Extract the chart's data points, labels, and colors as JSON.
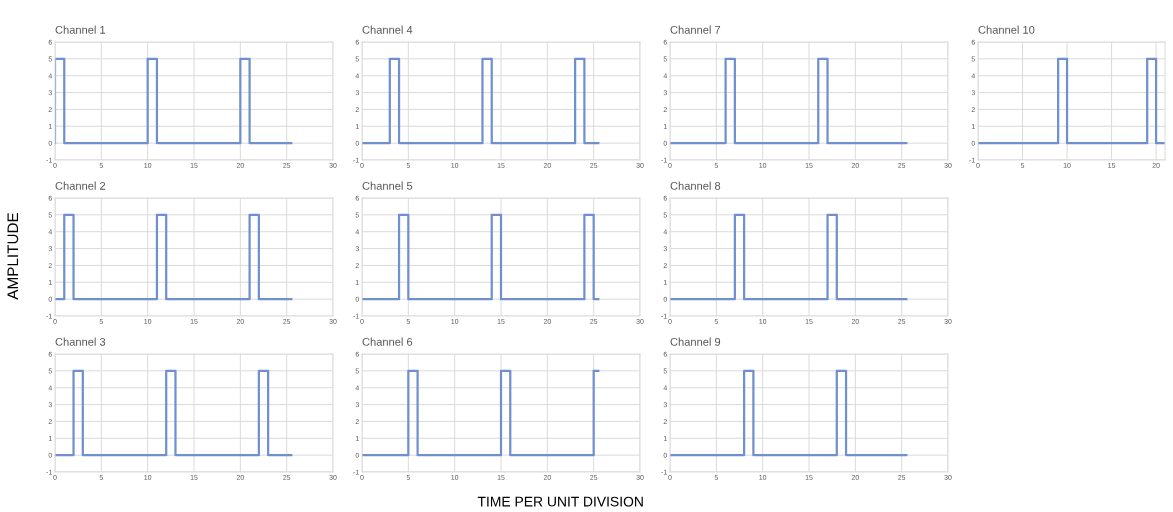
{
  "chart_data": [
    {
      "type": "line",
      "title": "Channel 1",
      "x": [
        0,
        0,
        1,
        1,
        10,
        10,
        11,
        11,
        20,
        20,
        21,
        21,
        25.5
      ],
      "values": [
        0,
        5,
        5,
        0,
        0,
        5,
        5,
        0,
        0,
        5,
        5,
        0,
        0
      ],
      "color": "#6f8fcf",
      "xlim": [
        0,
        30
      ],
      "xticks": [
        0,
        5,
        10,
        15,
        20,
        25,
        30
      ],
      "ylim": [
        -1,
        6
      ],
      "yticks": [
        -1,
        0,
        1,
        2,
        3,
        4,
        5,
        6
      ],
      "grid": true
    },
    {
      "type": "line",
      "title": "Channel 4",
      "x": [
        0,
        3,
        3,
        4,
        4,
        13,
        13,
        14,
        14,
        23,
        23,
        24,
        24,
        25.5
      ],
      "values": [
        0,
        0,
        5,
        5,
        0,
        0,
        5,
        5,
        0,
        0,
        5,
        5,
        0,
        0
      ],
      "color": "#6f8fcf",
      "xlim": [
        0,
        30
      ],
      "xticks": [
        0,
        5,
        10,
        15,
        20,
        25,
        30
      ],
      "ylim": [
        -1,
        6
      ],
      "yticks": [
        -1,
        0,
        1,
        2,
        3,
        4,
        5,
        6
      ],
      "grid": true
    },
    {
      "type": "line",
      "title": "Channel 7",
      "x": [
        0,
        6,
        6,
        7,
        7,
        16,
        16,
        17,
        17,
        25.5
      ],
      "values": [
        0,
        0,
        5,
        5,
        0,
        0,
        5,
        5,
        0,
        0
      ],
      "color": "#6f8fcf",
      "xlim": [
        0,
        30
      ],
      "xticks": [
        0,
        5,
        10,
        15,
        20,
        25,
        30
      ],
      "ylim": [
        -1,
        6
      ],
      "yticks": [
        -1,
        0,
        1,
        2,
        3,
        4,
        5,
        6
      ],
      "grid": true
    },
    {
      "type": "line",
      "title": "Channel 10",
      "x": [
        0,
        9,
        9,
        10,
        10,
        19,
        19,
        20,
        20,
        21
      ],
      "values": [
        0,
        0,
        5,
        5,
        0,
        0,
        5,
        5,
        0,
        0
      ],
      "color": "#6f8fcf",
      "xlim": [
        0,
        21
      ],
      "xticks": [
        0,
        5,
        10,
        15,
        20
      ],
      "ylim": [
        -1,
        6
      ],
      "yticks": [
        -1,
        0,
        1,
        2,
        3,
        4,
        5,
        6
      ],
      "grid": true
    },
    {
      "type": "line",
      "title": "Channel 2",
      "ylabel": "AMPLITUDE",
      "x": [
        0,
        1,
        1,
        2,
        2,
        11,
        11,
        12,
        12,
        21,
        21,
        22,
        22,
        25.5
      ],
      "values": [
        0,
        0,
        5,
        5,
        0,
        0,
        5,
        5,
        0,
        0,
        5,
        5,
        0,
        0
      ],
      "color": "#6f8fcf",
      "xlim": [
        0,
        30
      ],
      "xticks": [
        0,
        5,
        10,
        15,
        20,
        25,
        30
      ],
      "ylim": [
        -1,
        6
      ],
      "yticks": [
        -1,
        0,
        1,
        2,
        3,
        4,
        5,
        6
      ],
      "grid": true
    },
    {
      "type": "line",
      "title": "Channel 5",
      "x": [
        0,
        4,
        4,
        5,
        5,
        14,
        14,
        15,
        15,
        24,
        24,
        25,
        25,
        25.5
      ],
      "values": [
        0,
        0,
        5,
        5,
        0,
        0,
        5,
        5,
        0,
        0,
        5,
        5,
        0,
        0
      ],
      "color": "#6f8fcf",
      "xlim": [
        0,
        30
      ],
      "xticks": [
        0,
        5,
        10,
        15,
        20,
        25,
        30
      ],
      "ylim": [
        -1,
        6
      ],
      "yticks": [
        -1,
        0,
        1,
        2,
        3,
        4,
        5,
        6
      ],
      "grid": true
    },
    {
      "type": "line",
      "title": "Channel 8",
      "x": [
        0,
        7,
        7,
        8,
        8,
        17,
        17,
        18,
        18,
        25.5
      ],
      "values": [
        0,
        0,
        5,
        5,
        0,
        0,
        5,
        5,
        0,
        0
      ],
      "color": "#6f8fcf",
      "xlim": [
        0,
        30
      ],
      "xticks": [
        0,
        5,
        10,
        15,
        20,
        25,
        30
      ],
      "ylim": [
        -1,
        6
      ],
      "yticks": [
        -1,
        0,
        1,
        2,
        3,
        4,
        5,
        6
      ],
      "grid": true
    },
    {
      "type": "line",
      "title": "Channel 3",
      "x": [
        0,
        2,
        2,
        3,
        3,
        12,
        12,
        13,
        13,
        22,
        22,
        23,
        23,
        25.5
      ],
      "values": [
        0,
        0,
        5,
        5,
        0,
        0,
        5,
        5,
        0,
        0,
        5,
        5,
        0,
        0
      ],
      "color": "#6f8fcf",
      "xlim": [
        0,
        30
      ],
      "xticks": [
        0,
        5,
        10,
        15,
        20,
        25,
        30
      ],
      "ylim": [
        -1,
        6
      ],
      "yticks": [
        -1,
        0,
        1,
        2,
        3,
        4,
        5,
        6
      ],
      "grid": true
    },
    {
      "type": "line",
      "title": "Channel 6",
      "xlabel": "TIME PER UNIT DIVISION",
      "x": [
        0,
        5,
        5,
        6,
        6,
        15,
        15,
        16,
        16,
        25,
        25,
        25.5
      ],
      "values": [
        0,
        0,
        5,
        5,
        0,
        0,
        5,
        5,
        0,
        0,
        5,
        5
      ],
      "color": "#6f8fcf",
      "xlim": [
        0,
        30
      ],
      "xticks": [
        0,
        5,
        10,
        15,
        20,
        25,
        30
      ],
      "ylim": [
        -1,
        6
      ],
      "yticks": [
        -1,
        0,
        1,
        2,
        3,
        4,
        5,
        6
      ],
      "grid": true
    },
    {
      "type": "line",
      "title": "Channel 9",
      "x": [
        0,
        8,
        8,
        9,
        9,
        18,
        18,
        19,
        19,
        25.5
      ],
      "values": [
        0,
        0,
        5,
        5,
        0,
        0,
        5,
        5,
        0,
        0
      ],
      "color": "#6f8fcf",
      "xlim": [
        0,
        30
      ],
      "xticks": [
        0,
        5,
        10,
        15,
        20,
        25,
        30
      ],
      "ylim": [
        -1,
        6
      ],
      "yticks": [
        -1,
        0,
        1,
        2,
        3,
        4,
        5,
        6
      ],
      "grid": true
    }
  ]
}
